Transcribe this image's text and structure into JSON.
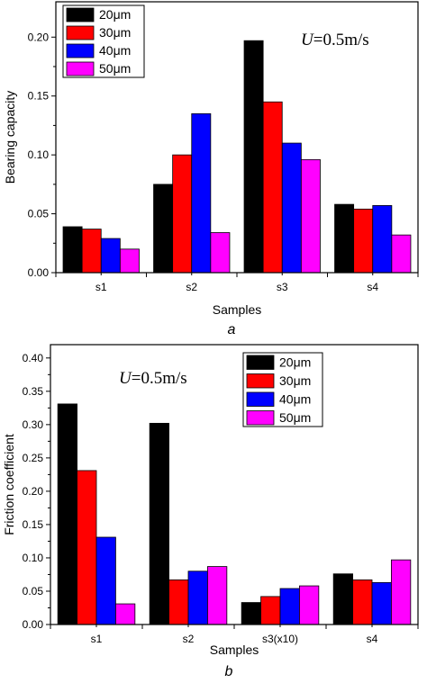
{
  "colors": [
    "#000000",
    "#ff0000",
    "#0000ff",
    "#ff00ff"
  ],
  "chart_data": [
    {
      "type": "bar",
      "caption": "a",
      "annotation": {
        "var": "U",
        "rest": "=0.5m/s"
      },
      "ylabel": "Bearing capacity",
      "xlabel": "Samples",
      "categories": [
        "s1",
        "s2",
        "s3",
        "s4"
      ],
      "ylim": [
        0,
        0.23
      ],
      "yticks": [
        "0.00",
        "0.05",
        "0.10",
        "0.15",
        "0.20"
      ],
      "legend_position": "top-left",
      "series": [
        {
          "name": "20μm",
          "values": [
            0.039,
            0.075,
            0.197,
            0.058
          ]
        },
        {
          "name": "30μm",
          "values": [
            0.037,
            0.1,
            0.145,
            0.054
          ]
        },
        {
          "name": "40μm",
          "values": [
            0.029,
            0.135,
            0.11,
            0.057
          ]
        },
        {
          "name": "50μm",
          "values": [
            0.02,
            0.034,
            0.096,
            0.032
          ]
        }
      ]
    },
    {
      "type": "bar",
      "caption": "b",
      "annotation": {
        "var": "U",
        "rest": "=0.5m/s"
      },
      "ylabel": "Friction coefficient",
      "xlabel": "Samples",
      "categories": [
        "s1",
        "s2",
        "s3(x10)",
        "s4"
      ],
      "ylim": [
        0,
        0.42
      ],
      "yticks": [
        "0.00",
        "0.05",
        "0.10",
        "0.15",
        "0.20",
        "0.25",
        "0.30",
        "0.35",
        "0.40"
      ],
      "legend_position": "top-right",
      "series": [
        {
          "name": "20μm",
          "values": [
            0.331,
            0.302,
            0.033,
            0.076
          ]
        },
        {
          "name": "30μm",
          "values": [
            0.231,
            0.067,
            0.042,
            0.067
          ]
        },
        {
          "name": "40μm",
          "values": [
            0.131,
            0.08,
            0.054,
            0.063
          ]
        },
        {
          "name": "50μm",
          "values": [
            0.031,
            0.087,
            0.058,
            0.097
          ]
        }
      ]
    }
  ]
}
